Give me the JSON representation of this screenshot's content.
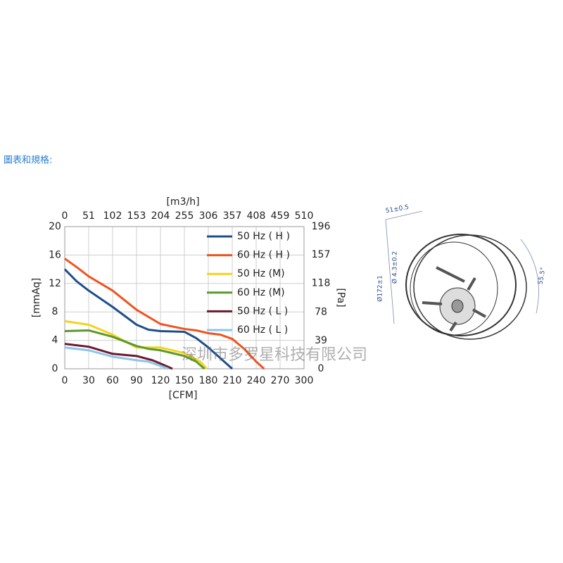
{
  "page": {
    "heading": "圖表和規格:",
    "watermark": "深圳市多罗星科技有限公司"
  },
  "drawing": {
    "depth": "51±0.5",
    "hole": "Ø 4.3±0.2",
    "diameter": "Ø172±1",
    "angle": "55.5°"
  },
  "chart_data": {
    "type": "line",
    "xlabel": "[CFM]",
    "x2label": "[m3/h]",
    "ylabel": "[mmAq]",
    "y2label": "[Pa]",
    "xlim": [
      0,
      300
    ],
    "xticks": [
      0,
      30,
      60,
      90,
      120,
      150,
      180,
      210,
      240,
      270,
      300
    ],
    "x2lim": [
      0,
      510
    ],
    "x2ticks": [
      0,
      51,
      102,
      153,
      204,
      255,
      306,
      357,
      408,
      459,
      510
    ],
    "ylim": [
      0,
      20
    ],
    "yticks": [
      0,
      4,
      8,
      12,
      16,
      20
    ],
    "y2lim": [
      0,
      196
    ],
    "y2ticks": [
      0,
      39,
      78,
      118,
      157,
      196
    ],
    "grid": true,
    "legend": "upper right",
    "series": [
      {
        "name": "50 Hz ( H )",
        "color": "#1f4e8c",
        "x": [
          0,
          15,
          30,
          60,
          90,
          105,
          120,
          150,
          165,
          180,
          195,
          210
        ],
        "values": [
          14,
          12.3,
          11,
          8.7,
          6.2,
          5.5,
          5.3,
          5.2,
          4.3,
          3,
          1.5,
          0
        ]
      },
      {
        "name": "60 Hz ( H )",
        "color": "#f0531e",
        "x": [
          0,
          15,
          30,
          60,
          90,
          120,
          150,
          165,
          180,
          195,
          210,
          225,
          240,
          250
        ],
        "values": [
          15.5,
          14.3,
          13,
          11,
          8.3,
          6.3,
          5.6,
          5.4,
          5,
          4.8,
          4.2,
          2.8,
          1,
          0
        ]
      },
      {
        "name": "50 Hz (M)",
        "color": "#f5d31c",
        "x": [
          0,
          30,
          60,
          90,
          120,
          150,
          170,
          178
        ],
        "values": [
          6.7,
          6.2,
          4.8,
          3,
          3,
          2.2,
          1,
          0
        ]
      },
      {
        "name": "60 Hz (M)",
        "color": "#5a9a2a",
        "x": [
          0,
          30,
          60,
          90,
          105,
          120,
          150,
          165,
          175
        ],
        "values": [
          5.3,
          5.4,
          4.5,
          3.2,
          2.8,
          2.6,
          1.8,
          1,
          0
        ]
      },
      {
        "name": "50 Hz ( L )",
        "color": "#6b1a2e",
        "x": [
          0,
          30,
          60,
          90,
          110,
          125,
          135
        ],
        "values": [
          3.5,
          3.1,
          2.1,
          1.8,
          1.2,
          0.5,
          0
        ]
      },
      {
        "name": "60 Hz ( L )",
        "color": "#8cc4ee",
        "x": [
          0,
          30,
          60,
          90,
          105,
          120,
          130
        ],
        "values": [
          3,
          2.6,
          1.7,
          1.2,
          1,
          0.4,
          0
        ]
      }
    ]
  }
}
